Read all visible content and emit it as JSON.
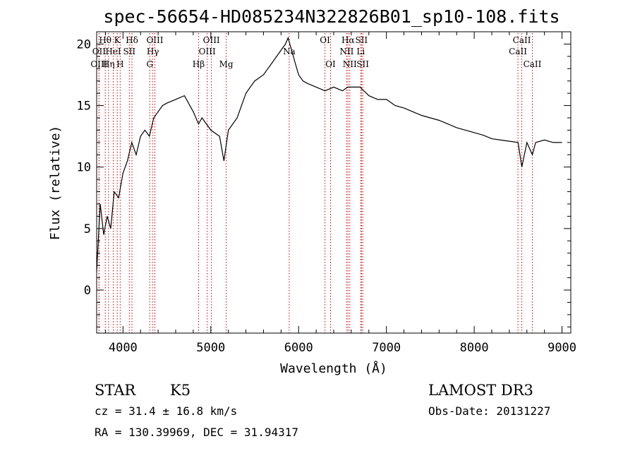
{
  "chart_data": {
    "type": "line",
    "title": "spec-56654-HD085234N322826B01_sp10-108.fits",
    "xlabel": "Wavelength (Å)",
    "ylabel": "Flux (relative)",
    "xlim": [
      3700,
      9100
    ],
    "ylim": [
      -3.5,
      21
    ],
    "xticks": [
      4000,
      5000,
      6000,
      7000,
      8000,
      9000
    ],
    "yticks": [
      0,
      5,
      10,
      15,
      20
    ],
    "grid": false,
    "legend": "none",
    "series": [
      {
        "x": [
          3700,
          3740,
          3780,
          3820,
          3860,
          3900,
          3950,
          4000,
          4050,
          4100,
          4150,
          4200,
          4250,
          4300,
          4350,
          4400,
          4450,
          4500,
          4600,
          4700,
          4800,
          4860,
          4900,
          5000,
          5100,
          5150,
          5200,
          5300,
          5400,
          5500,
          5600,
          5700,
          5800,
          5850,
          5880,
          5920,
          5960,
          6000,
          6050,
          6100,
          6200,
          6300,
          6400,
          6500,
          6560,
          6600,
          6700,
          6800,
          6900,
          7000,
          7100,
          7200,
          7300,
          7400,
          7500,
          7600,
          7700,
          7800,
          7900,
          8000,
          8100,
          8200,
          8300,
          8400,
          8500,
          8542,
          8600,
          8662,
          8700,
          8800,
          8900,
          9000
        ],
        "y": [
          1.5,
          7.0,
          4.5,
          6.0,
          5.0,
          8.0,
          7.5,
          9.5,
          10.5,
          12.0,
          11.0,
          12.5,
          13.0,
          12.5,
          14.0,
          14.5,
          15.0,
          15.2,
          15.5,
          15.8,
          14.5,
          13.5,
          14.0,
          13.0,
          12.5,
          10.5,
          13.0,
          14.0,
          16.0,
          17.0,
          17.5,
          18.5,
          19.5,
          20.0,
          20.5,
          19.5,
          18.5,
          17.5,
          17.0,
          16.8,
          16.5,
          16.2,
          16.5,
          16.2,
          16.5,
          16.5,
          16.5,
          15.8,
          15.5,
          15.5,
          15.0,
          14.8,
          14.5,
          14.2,
          14.0,
          13.8,
          13.5,
          13.2,
          13.0,
          12.8,
          12.6,
          12.3,
          12.2,
          12.1,
          12.0,
          10.0,
          12.0,
          11.0,
          12.0,
          12.2,
          12.0,
          12.0
        ]
      }
    ],
    "spectral_lines": [
      {
        "label": "Hθ",
        "wavelength": 3798,
        "row": 1
      },
      {
        "label": "OII",
        "wavelength": 3727,
        "row": 2
      },
      {
        "label": "OIII",
        "wavelength": 3727,
        "row": 3
      },
      {
        "label": "Hη",
        "wavelength": 3835,
        "row": 3
      },
      {
        "label": "HeI",
        "wavelength": 3889,
        "row": 2
      },
      {
        "label": "K",
        "wavelength": 3934,
        "row": 1
      },
      {
        "label": "SII",
        "wavelength": 4072,
        "row": 2
      },
      {
        "label": "H",
        "wavelength": 3968,
        "row": 3
      },
      {
        "label": "Hδ",
        "wavelength": 4102,
        "row": 1
      },
      {
        "label": "OIII",
        "wavelength": 4363,
        "row": 1
      },
      {
        "label": "Hγ",
        "wavelength": 4340,
        "row": 2
      },
      {
        "label": "G",
        "wavelength": 4305,
        "row": 3
      },
      {
        "label": "Hβ",
        "wavelength": 4861,
        "row": 3
      },
      {
        "label": "OIII",
        "wavelength": 5007,
        "row": 1
      },
      {
        "label": "OIII",
        "wavelength": 4959,
        "row": 2
      },
      {
        "label": "Mg",
        "wavelength": 5175,
        "row": 3
      },
      {
        "label": "Na",
        "wavelength": 5893,
        "row": 2
      },
      {
        "label": "OI",
        "wavelength": 6300,
        "row": 1
      },
      {
        "label": "OI",
        "wavelength": 6364,
        "row": 3
      },
      {
        "label": "Hα",
        "wavelength": 6563,
        "row": 1
      },
      {
        "label": "SII",
        "wavelength": 6716,
        "row": 1
      },
      {
        "label": "NII",
        "wavelength": 6548,
        "row": 2
      },
      {
        "label": "Li",
        "wavelength": 6708,
        "row": 2
      },
      {
        "label": "NII",
        "wavelength": 6583,
        "row": 3
      },
      {
        "label": "SII",
        "wavelength": 6731,
        "row": 3
      },
      {
        "label": "CaII",
        "wavelength": 8542,
        "row": 1
      },
      {
        "label": "CaII",
        "wavelength": 8498,
        "row": 2
      },
      {
        "label": "CaII",
        "wavelength": 8662,
        "row": 3
      }
    ]
  },
  "info": {
    "object_class": "STAR",
    "subclass": "K5",
    "survey": "LAMOST DR3",
    "redshift": "cz = 31.4 ± 16.8 km/s",
    "obs_date": "Obs-Date: 20131227",
    "coordinates": "RA = 130.39969, DEC =  31.94317"
  },
  "colors": {
    "spectrum": "#000000",
    "line_markers": "#cc0000",
    "background": "#ffffff"
  }
}
